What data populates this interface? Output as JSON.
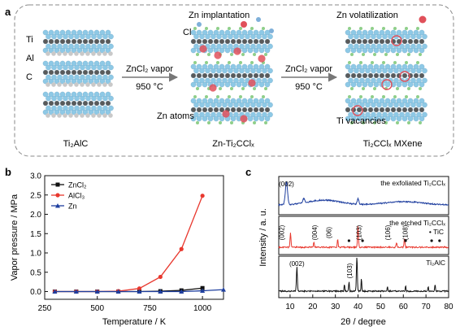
{
  "panel_a": {
    "label": "a",
    "elements": {
      "ti": "Ti",
      "al": "Al",
      "c": "C",
      "cl": "Cl"
    },
    "captions": {
      "ti2alc": "Ti₂AlC",
      "zn_ti2ccl": "Zn-Ti₂CClₓ",
      "mxene": "Ti₂CClₓ MXene"
    },
    "arrows": {
      "first": {
        "reagent": "ZnCl₂ vapor",
        "temperature": "950 °C"
      },
      "second": {
        "reagent": "ZnCl₂ vapor",
        "temperature": "950 °C"
      }
    },
    "annotations": {
      "zn_implantation": "Zn implantation",
      "zn_volatilization": "Zn volatilization",
      "zn_atoms": "Zn atoms",
      "ti_vacancies": "Ti vacancies"
    },
    "colors": {
      "ti": "#8ec9e6",
      "al": "#c9c9c9",
      "c": "#5a5a5a",
      "cl": "#8fcf8a",
      "zn": "#e0505a"
    }
  },
  "panel_b": {
    "label": "b",
    "chart_data": {
      "type": "line",
      "xlabel": "Temperature / K",
      "ylabel": "Vapor pressure / MPa",
      "xlim": [
        250,
        1100
      ],
      "ylim": [
        -0.2,
        3.0
      ],
      "xticks": [
        "250",
        "500",
        "750",
        "1000"
      ],
      "yticks": [
        "0.0",
        "0.5",
        "1.0",
        "1.5",
        "2.0",
        "2.5",
        "3.0"
      ],
      "legend_position": "top-left",
      "series": [
        {
          "name": "ZnCl₂",
          "color": "#111111",
          "marker": "square",
          "x": [
            298,
            400,
            500,
            600,
            700,
            800,
            900,
            1000
          ],
          "y": [
            0,
            0,
            0,
            0,
            0,
            0.01,
            0.03,
            0.09
          ]
        },
        {
          "name": "AlCl₃",
          "color": "#e8382e",
          "marker": "circle",
          "x": [
            298,
            400,
            500,
            600,
            700,
            800,
            900,
            1000
          ],
          "y": [
            0,
            0,
            0,
            0.01,
            0.08,
            0.38,
            1.1,
            2.48
          ]
        },
        {
          "name": "Zn",
          "color": "#1f3f9f",
          "marker": "triangle",
          "x": [
            298,
            400,
            500,
            600,
            700,
            800,
            900,
            1000,
            1100
          ],
          "y": [
            0,
            0,
            0,
            0,
            0,
            0,
            0,
            0.02,
            0.05
          ]
        }
      ]
    }
  },
  "panel_c": {
    "label": "c",
    "chart_data": {
      "type": "line",
      "xlabel": "2θ / degree",
      "ylabel": "Intensity / a. u.",
      "xlim": [
        5,
        80
      ],
      "xticks": [
        "10",
        "20",
        "30",
        "40",
        "50",
        "60",
        "70",
        "80"
      ],
      "series": [
        {
          "name": "the exfoliated Ti₂CClₓ",
          "color": "#1f3f9f",
          "peaks": [
            {
              "x": 8.4,
              "label": "(002)"
            }
          ]
        },
        {
          "name": "the etched Ti₂CClₓ",
          "color": "#e8382e",
          "peaks": [
            {
              "x": 10.2,
              "label": "(002)"
            },
            {
              "x": 20.5,
              "label": "(004)"
            },
            {
              "x": 31,
              "label": "(06)"
            },
            {
              "x": 40,
              "label": "(103)"
            },
            {
              "x": 57,
              "label": "(106)"
            },
            {
              "x": 60.5,
              "label": "(108)"
            }
          ],
          "tic_marker": "• TiC"
        },
        {
          "name": "Ti₂AlC",
          "color": "#111111",
          "peaks": [
            {
              "x": 13,
              "label": "(002)"
            },
            {
              "x": 39.5,
              "label": "(103)"
            }
          ]
        }
      ]
    }
  }
}
